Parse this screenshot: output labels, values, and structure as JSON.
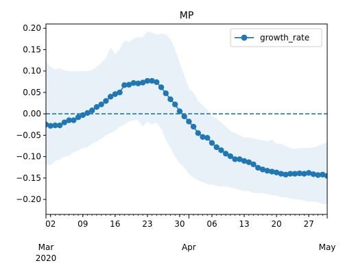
{
  "chart_data": {
    "type": "line",
    "title": "MP",
    "xlabel": "",
    "ylabel": "",
    "x_start": "2020-03-01",
    "x_end": "2020-05-01",
    "ylim": [
      -0.235,
      0.21
    ],
    "y_ticks": [
      "0.20",
      "0.15",
      "0.10",
      "0.05",
      "0.00",
      "−0.05",
      "−0.10",
      "−0.15",
      "−0.20"
    ],
    "x_day_ticks": [
      {
        "date": "2020-03-02",
        "label": "02"
      },
      {
        "date": "2020-03-09",
        "label": "09"
      },
      {
        "date": "2020-03-16",
        "label": "16"
      },
      {
        "date": "2020-03-23",
        "label": "23"
      },
      {
        "date": "2020-03-30",
        "label": "30"
      },
      {
        "date": "2020-04-06",
        "label": "06"
      },
      {
        "date": "2020-04-13",
        "label": "13"
      },
      {
        "date": "2020-04-20",
        "label": "20"
      },
      {
        "date": "2020-04-27",
        "label": "27"
      }
    ],
    "x_month_ticks": [
      {
        "date": "2020-03-01",
        "label": "Mar",
        "year": "2020"
      },
      {
        "date": "2020-04-01",
        "label": "Apr",
        "year": ""
      },
      {
        "date": "2020-05-01",
        "label": "May",
        "year": ""
      }
    ],
    "reference_line": {
      "y": 0.0,
      "style": "dashed"
    },
    "legend": {
      "placement": "top-right"
    },
    "series": [
      {
        "name": "growth_rate",
        "x": [
          "2020-03-01",
          "2020-03-02",
          "2020-03-03",
          "2020-03-04",
          "2020-03-05",
          "2020-03-06",
          "2020-03-07",
          "2020-03-08",
          "2020-03-09",
          "2020-03-10",
          "2020-03-11",
          "2020-03-12",
          "2020-03-13",
          "2020-03-14",
          "2020-03-15",
          "2020-03-16",
          "2020-03-17",
          "2020-03-18",
          "2020-03-19",
          "2020-03-20",
          "2020-03-21",
          "2020-03-22",
          "2020-03-23",
          "2020-03-24",
          "2020-03-25",
          "2020-03-26",
          "2020-03-27",
          "2020-03-28",
          "2020-03-29",
          "2020-03-30",
          "2020-03-31",
          "2020-04-01",
          "2020-04-02",
          "2020-04-03",
          "2020-04-04",
          "2020-04-05",
          "2020-04-06",
          "2020-04-07",
          "2020-04-08",
          "2020-04-09",
          "2020-04-10",
          "2020-04-11",
          "2020-04-12",
          "2020-04-13",
          "2020-04-14",
          "2020-04-15",
          "2020-04-16",
          "2020-04-17",
          "2020-04-18",
          "2020-04-19",
          "2020-04-20",
          "2020-04-21",
          "2020-04-22",
          "2020-04-23",
          "2020-04-24",
          "2020-04-25",
          "2020-04-26",
          "2020-04-27",
          "2020-04-28",
          "2020-04-29",
          "2020-04-30",
          "2020-05-01"
        ],
        "y": [
          -0.025,
          -0.028,
          -0.027,
          -0.027,
          -0.02,
          -0.015,
          -0.015,
          -0.008,
          -0.003,
          0.002,
          0.008,
          0.016,
          0.022,
          0.03,
          0.04,
          0.046,
          0.05,
          0.067,
          0.068,
          0.072,
          0.071,
          0.073,
          0.077,
          0.077,
          0.074,
          0.062,
          0.048,
          0.034,
          0.022,
          0.006,
          -0.006,
          -0.018,
          -0.03,
          -0.045,
          -0.054,
          -0.056,
          -0.068,
          -0.078,
          -0.085,
          -0.093,
          -0.099,
          -0.106,
          -0.106,
          -0.11,
          -0.113,
          -0.118,
          -0.126,
          -0.13,
          -0.133,
          -0.135,
          -0.137,
          -0.14,
          -0.142,
          -0.14,
          -0.14,
          -0.139,
          -0.14,
          -0.138,
          -0.141,
          -0.143,
          -0.142,
          -0.145
        ],
        "upper": [
          0.123,
          0.11,
          0.104,
          0.106,
          0.102,
          0.1,
          0.099,
          0.1,
          0.1,
          0.1,
          0.102,
          0.11,
          0.12,
          0.13,
          0.155,
          0.14,
          0.15,
          0.172,
          0.168,
          0.175,
          0.18,
          0.178,
          0.193,
          0.19,
          0.185,
          0.188,
          0.186,
          0.175,
          0.15,
          0.12,
          0.09,
          0.06,
          0.05,
          0.03,
          0.02,
          0.01,
          -0.005,
          -0.01,
          -0.02,
          -0.03,
          -0.04,
          -0.045,
          -0.05,
          -0.055,
          -0.055,
          -0.058,
          -0.06,
          -0.062,
          -0.065,
          -0.06,
          -0.07,
          -0.07,
          -0.075,
          -0.08,
          -0.082,
          -0.08,
          -0.08,
          -0.08,
          -0.078,
          -0.075,
          -0.07,
          -0.065
        ],
        "lower": [
          -0.118,
          -0.12,
          -0.11,
          -0.107,
          -0.1,
          -0.098,
          -0.09,
          -0.085,
          -0.08,
          -0.078,
          -0.07,
          -0.065,
          -0.058,
          -0.05,
          -0.045,
          -0.04,
          -0.03,
          -0.025,
          -0.018,
          -0.015,
          -0.015,
          -0.03,
          -0.018,
          -0.025,
          -0.02,
          -0.035,
          -0.06,
          -0.08,
          -0.1,
          -0.115,
          -0.125,
          -0.14,
          -0.15,
          -0.155,
          -0.16,
          -0.165,
          -0.165,
          -0.168,
          -0.17,
          -0.17,
          -0.172,
          -0.175,
          -0.178,
          -0.18,
          -0.18,
          -0.185,
          -0.185,
          -0.185,
          -0.188,
          -0.19,
          -0.19,
          -0.195,
          -0.195,
          -0.198,
          -0.2,
          -0.2,
          -0.203,
          -0.205,
          -0.205,
          -0.207,
          -0.21,
          -0.212
        ]
      }
    ],
    "colors": {
      "line": "#1f77b4",
      "band": "#1f77b4",
      "axis": "#000000"
    }
  }
}
